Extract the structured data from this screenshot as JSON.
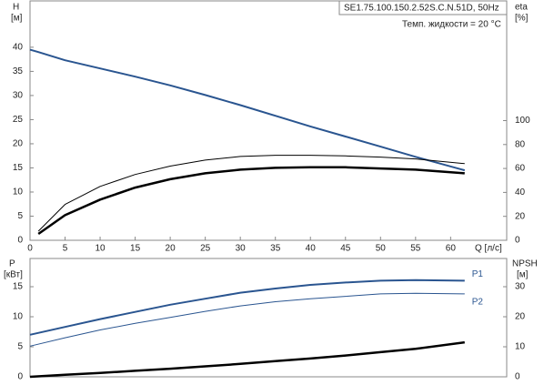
{
  "chart_data": [
    {
      "type": "line",
      "title": "SE1.75.100.150.2.52S.C.N.51D, 50Hz",
      "annotation": "Темп. жидкости = 20 °C",
      "ylabel": "H",
      "yunit": "[м]",
      "y2label": "eta",
      "y2unit": "[%]",
      "xlabel": "Q [л/с]",
      "x": [
        0,
        1.2,
        5,
        10,
        15,
        20,
        25,
        30,
        35,
        40,
        45,
        50,
        55,
        62
      ],
      "xlim": [
        0,
        68
      ],
      "xticks": [
        0,
        5,
        10,
        15,
        20,
        25,
        30,
        35,
        40,
        45,
        50,
        55,
        60
      ],
      "ylim": [
        0,
        49.6
      ],
      "yticks": [
        0,
        5,
        10,
        15,
        20,
        25,
        30,
        35,
        40
      ],
      "y2lim": [
        0,
        200
      ],
      "y2ticks": [
        0,
        20,
        40,
        60,
        80,
        100
      ],
      "series": [
        {
          "color": "#2a5590",
          "values": [
            39.5,
            39,
            37.3,
            35.6,
            33.9,
            32.1,
            30.1,
            28,
            25.8,
            23.6,
            21.5,
            19.4,
            17.3,
            14.5
          ]
        },
        {
          "color": "#000000",
          "axis": "y2",
          "values": [
            null,
            7.6,
            30,
            45,
            55,
            62,
            67,
            70,
            71,
            71,
            70.5,
            69.5,
            68,
            64
          ]
        },
        {
          "color": "#000000",
          "axis": "y2",
          "values": [
            null,
            5.3,
            21,
            34,
            44,
            51,
            56,
            59,
            60.5,
            61,
            61,
            60,
            59,
            56
          ]
        }
      ]
    },
    {
      "type": "line",
      "ylabel": "P",
      "yunit": "[кВт]",
      "y2label": "NPSH",
      "y2unit": "[м]",
      "x": [
        0,
        5,
        10,
        15,
        20,
        25,
        30,
        35,
        40,
        45,
        50,
        55,
        62
      ],
      "xlim": [
        0,
        68
      ],
      "ylim": [
        0,
        19.7
      ],
      "yticks": [
        0,
        5,
        10,
        15
      ],
      "y2lim": [
        0,
        39.4
      ],
      "y2ticks": [
        0,
        10,
        20,
        30
      ],
      "series": [
        {
          "name": "P1",
          "color": "#2a5590",
          "values": [
            7,
            8.3,
            9.6,
            10.8,
            12,
            13,
            14,
            14.7,
            15.3,
            15.7,
            16,
            16.1,
            16
          ]
        },
        {
          "name": "P2",
          "color": "#2a5590",
          "values": [
            5.1,
            6.5,
            7.8,
            8.9,
            9.9,
            10.9,
            11.8,
            12.5,
            13,
            13.4,
            13.8,
            13.9,
            13.8
          ]
        },
        {
          "color": "#000000",
          "axis": "y2",
          "values": [
            0,
            0.7,
            1.3,
            2,
            2.7,
            3.5,
            4.3,
            5.2,
            6.1,
            7.1,
            8.2,
            9.3,
            11.5
          ]
        }
      ]
    }
  ]
}
